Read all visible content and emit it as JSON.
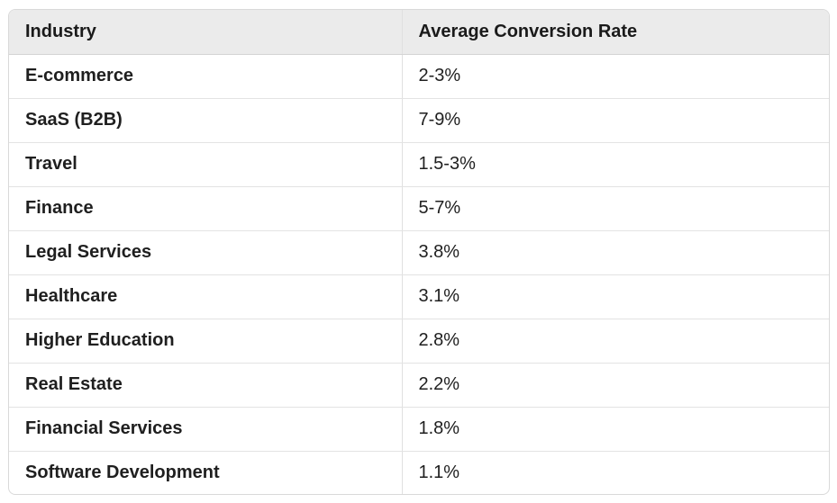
{
  "table": {
    "headers": [
      "Industry",
      "Average Conversion Rate"
    ],
    "rows": [
      {
        "industry": "E-commerce",
        "rate": "2-3%"
      },
      {
        "industry": "SaaS (B2B)",
        "rate": "7-9%"
      },
      {
        "industry": "Travel",
        "rate": "1.5-3%"
      },
      {
        "industry": "Finance",
        "rate": "5-7%"
      },
      {
        "industry": "Legal Services",
        "rate": "3.8%"
      },
      {
        "industry": "Healthcare",
        "rate": "3.1%"
      },
      {
        "industry": "Higher Education",
        "rate": "2.8%"
      },
      {
        "industry": "Real Estate",
        "rate": "2.2%"
      },
      {
        "industry": "Financial Services",
        "rate": "1.8%"
      },
      {
        "industry": "Software Development",
        "rate": "1.1%"
      }
    ]
  },
  "colors": {
    "header_background": "#ebebeb",
    "border": "#d9d9d9",
    "text": "#1f1f1f"
  }
}
